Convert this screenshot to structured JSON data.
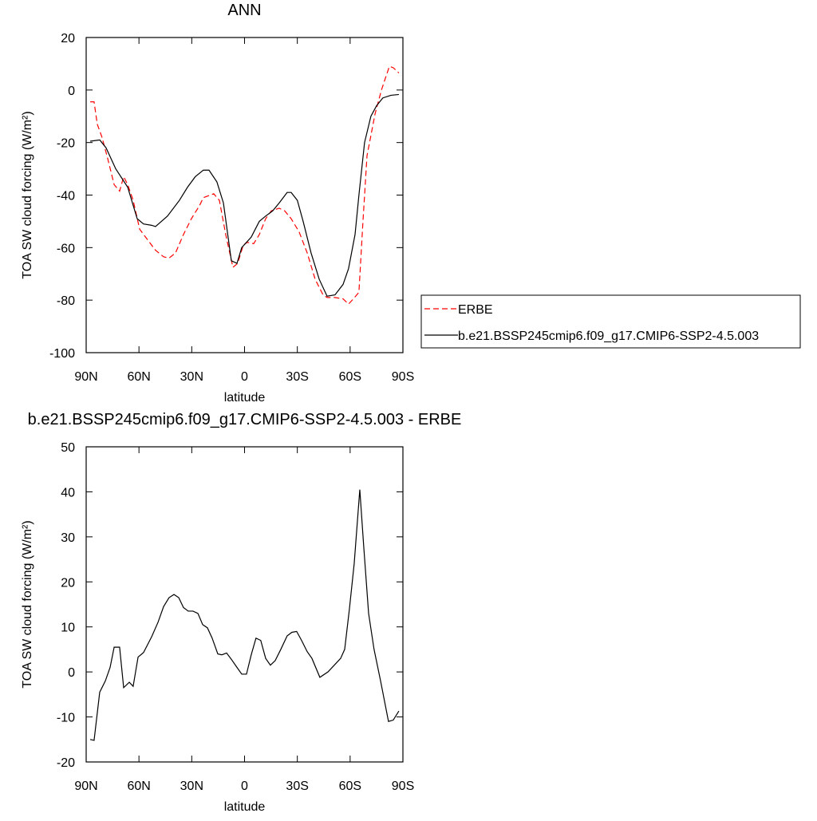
{
  "chart_data": [
    {
      "type": "line",
      "title": "ANN",
      "xlabel": "latitude",
      "ylabel": "TOA SW cloud forcing (W/m²)",
      "xlim": [
        90,
        -90
      ],
      "ylim": [
        20,
        -100
      ],
      "xticks": [
        {
          "value": 90,
          "label": "90N"
        },
        {
          "value": 60,
          "label": "60N"
        },
        {
          "value": 30,
          "label": "30N"
        },
        0,
        {
          "value": -30,
          "label": "30S"
        },
        {
          "value": -60,
          "label": "60S"
        },
        {
          "value": -90,
          "label": "90S"
        }
      ],
      "yticks": [
        20,
        0,
        -20,
        -40,
        -60,
        -80,
        -100
      ],
      "legend": "right",
      "series": [
        {
          "name": "ERBE",
          "color": "#ff0000",
          "line_style": "dashed",
          "x": [
            87.7,
            85.5,
            83.7,
            81,
            77.8,
            74.1,
            71,
            68.7,
            66.4,
            63.3,
            59.6,
            55.1,
            50.6,
            46,
            42.9,
            39.2,
            34.7,
            30.2,
            25.6,
            23.4,
            17.5,
            14.3,
            10.7,
            6.6,
            3.9,
            0.7,
            -1.6,
            -5.2,
            -8.4,
            -12,
            -15.2,
            -19.7,
            -22.8,
            -26.5,
            -31,
            -35.6,
            -40.1,
            -44.6,
            -46.9,
            -51.4,
            -56,
            -59.1,
            -61.9,
            -65,
            -67.3,
            -69.6,
            -74.2,
            -77.8,
            -82.3,
            -84.5,
            -87.7
          ],
          "values": [
            -4.5,
            -4.5,
            -13,
            -18,
            -26,
            -36,
            -38.5,
            -33,
            -36,
            -42,
            -53,
            -57,
            -61,
            -63.5,
            -64,
            -62,
            -55,
            -49,
            -44,
            -41,
            -39.5,
            -42,
            -55,
            -67.5,
            -66,
            -59,
            -58,
            -58.5,
            -55,
            -49,
            -46,
            -45,
            -46,
            -49,
            -54,
            -62,
            -72,
            -78,
            -79,
            -79,
            -79.5,
            -81.5,
            -79.5,
            -77,
            -50,
            -25,
            -9,
            0,
            9,
            8.5,
            6.5
          ]
        },
        {
          "name": "b.e21.BSSP245cmip6.f09_g17.CMIP6-SSP2-4.5.003",
          "color": "#000000",
          "line_style": "solid",
          "x": [
            87.7,
            82.3,
            78.7,
            73.2,
            66.4,
            61,
            57.4,
            52.8,
            50.6,
            43.8,
            37,
            32.4,
            28,
            23.4,
            20.2,
            15.7,
            12,
            7.5,
            4.3,
            1.6,
            -3.8,
            -8.4,
            -12,
            -16,
            -19.7,
            -24.2,
            -26.5,
            -30,
            -33.3,
            -37.8,
            -42.4,
            -46.9,
            -51.4,
            -56,
            -59.1,
            -62.8,
            -65,
            -68.2,
            -71.8,
            -75,
            -78.6,
            -83.2,
            -87.7
          ],
          "values": [
            -19.5,
            -19,
            -22,
            -30,
            -37,
            -49,
            -51,
            -51.5,
            -52,
            -48,
            -42,
            -37,
            -33,
            -30.5,
            -30.5,
            -35,
            -43,
            -65,
            -66,
            -60,
            -56,
            -50,
            -48,
            -46,
            -43,
            -39,
            -39,
            -42,
            -50,
            -62,
            -72,
            -78.5,
            -78,
            -74,
            -68,
            -55,
            -40,
            -20,
            -10,
            -6,
            -3,
            -2,
            -1.7
          ]
        }
      ]
    },
    {
      "type": "line",
      "title": "b.e21.BSSP245cmip6.f09_g17.CMIP6-SSP2-4.5.003 - ERBE",
      "xlabel": "latitude",
      "ylabel": "TOA SW cloud forcing (W/m²)",
      "xlim": [
        90,
        -90
      ],
      "ylim": [
        50,
        -20
      ],
      "xticks": [
        {
          "value": 90,
          "label": "90N"
        },
        {
          "value": 60,
          "label": "60N"
        },
        {
          "value": 30,
          "label": "30N"
        },
        0,
        {
          "value": -30,
          "label": "30S"
        },
        {
          "value": -60,
          "label": "60S"
        },
        {
          "value": -90,
          "label": "90S"
        }
      ],
      "yticks": [
        50,
        40,
        30,
        20,
        10,
        0,
        -10,
        -20
      ],
      "color": "#000000",
      "x": [
        87.7,
        85.5,
        82.3,
        79.1,
        76.4,
        74.1,
        71,
        68.7,
        65.5,
        63.3,
        60.5,
        57.4,
        52.8,
        49.2,
        46,
        42.9,
        40.1,
        37.4,
        34.7,
        32,
        29.3,
        26.5,
        23.8,
        21.1,
        18.4,
        15.2,
        12.9,
        10.2,
        7.5,
        4.3,
        1.6,
        -1.1,
        -3.8,
        -6.5,
        -9.2,
        -12,
        -14.7,
        -17.4,
        -20.6,
        -24.2,
        -26.9,
        -29.6,
        -32.4,
        -35.6,
        -38.3,
        -42.8,
        -47.4,
        -51,
        -54.6,
        -56.9,
        -59.6,
        -62.3,
        -65.5,
        -67.7,
        -70.5,
        -73.6,
        -77.3,
        -81.8,
        -84.5,
        -87.7
      ],
      "values": [
        -15,
        -15.2,
        -4.5,
        -2,
        1,
        5.5,
        5.5,
        -3.5,
        -2.3,
        -3.2,
        3.3,
        4.3,
        7.8,
        11,
        14.5,
        16.5,
        17.2,
        16.5,
        14.3,
        13.5,
        13.5,
        13,
        10.5,
        9.8,
        7.5,
        4,
        3.8,
        4.2,
        2.8,
        1,
        -0.5,
        -0.5,
        3.8,
        7.5,
        7,
        3,
        1.5,
        2.5,
        5,
        8,
        8.8,
        9,
        7,
        4.5,
        3,
        -1.2,
        0,
        1.5,
        3,
        5,
        14,
        24,
        40.5,
        28,
        13,
        5,
        -2,
        -11,
        -10.7,
        -8.7
      ]
    }
  ]
}
